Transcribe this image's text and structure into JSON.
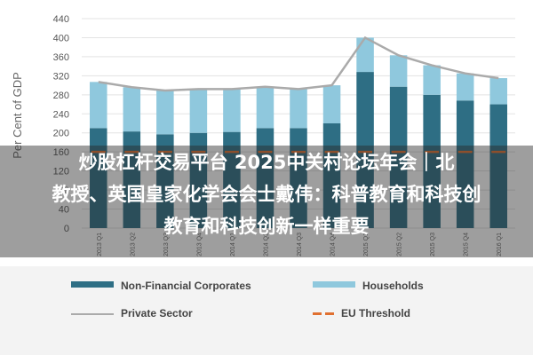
{
  "chart_data": {
    "type": "bar",
    "ylabel": "Per Cent of GDP",
    "ylim": [
      0,
      440
    ],
    "yticks": [
      0,
      40,
      80,
      120,
      160,
      200,
      240,
      280,
      320,
      360,
      400,
      440
    ],
    "grid": true,
    "legend_position": "bottom",
    "categories": [
      "2013 Q1",
      "2013 Q2",
      "2013 Q3",
      "2013 Q4",
      "2014 Q1",
      "2014 Q2",
      "2014 Q3",
      "2014 Q4",
      "2015 Q1",
      "2015 Q2",
      "2015 Q3",
      "2015 Q4",
      "2016 Q1"
    ],
    "series": [
      {
        "name": "Non-Financial Corporates",
        "values": [
          210,
          203,
          197,
          200,
          202,
          210,
          210,
          220,
          328,
          297,
          280,
          268,
          260
        ],
        "color": "#2e6e84"
      },
      {
        "name": "Households",
        "values": [
          97,
          93,
          92,
          92,
          90,
          87,
          82,
          80,
          72,
          66,
          62,
          57,
          55
        ],
        "color": "#8fc8dd"
      },
      {
        "name": "Private Sector",
        "values": [
          307,
          296,
          289,
          292,
          292,
          297,
          292,
          300,
          400,
          363,
          342,
          325,
          315
        ],
        "color": "#aaaaaa"
      },
      {
        "name": "EU Threshold",
        "values": [
          160,
          160,
          160,
          160,
          160,
          160,
          160,
          160,
          160,
          160,
          160,
          160,
          160
        ],
        "color": "#e07030"
      }
    ]
  },
  "overlay": {
    "line1": "炒股杠杆交易平台 2025中关村论坛年会｜北",
    "line2": "教授、英国皇家化学会会士戴伟：科普教育和科技创",
    "line3": "教育和科技创新一样重要"
  }
}
